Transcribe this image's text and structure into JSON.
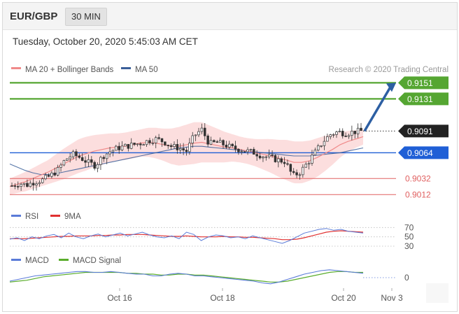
{
  "header": {
    "symbol": "EUR/GBP",
    "timeframe": "30 MIN"
  },
  "datetime": "Tuesday, October 20, 2020 5:45:03 AM CET",
  "credit": "Research © 2020 Trading Central",
  "colors": {
    "resistance": "#55a632",
    "support": "#e06060",
    "pivot": "#1f5fd6",
    "price_tag": "#222222",
    "ma20": "#f08a8a",
    "ma50": "#3a5f99",
    "band": "#fbd3d3",
    "arrow": "#2d5fa3",
    "rsi": "#5a7bd8",
    "rsi_ma": "#e03030",
    "macd": "#5a7bd8",
    "macd_signal": "#5aad2c",
    "candle": "#333333"
  },
  "chart_data": [
    {
      "type": "candlestick",
      "panel": "price",
      "legend": [
        "MA 20 + Bollinger Bands",
        "MA 50"
      ],
      "ylim": [
        0.9,
        0.916
      ],
      "x_ticks": [
        "Oct 16",
        "Oct 18",
        "Oct 20",
        "Nov 3"
      ],
      "levels": [
        {
          "label": "0.9151",
          "value": 0.9151,
          "kind": "resistance"
        },
        {
          "label": "0.9131",
          "value": 0.9131,
          "kind": "resistance"
        },
        {
          "label": "0.9091",
          "value": 0.9091,
          "kind": "price"
        },
        {
          "label": "0.9064",
          "value": 0.9064,
          "kind": "pivot"
        },
        {
          "label": "0.9032",
          "value": 0.9032,
          "kind": "support"
        },
        {
          "label": "0.9012",
          "value": 0.9012,
          "kind": "support"
        }
      ],
      "close_path": [
        0.9023,
        0.9026,
        0.9024,
        0.9028,
        0.903,
        0.9035,
        0.9042,
        0.9055,
        0.9062,
        0.9058,
        0.9052,
        0.9048,
        0.906,
        0.9066,
        0.907,
        0.9072,
        0.9074,
        0.9076,
        0.9079,
        0.9081,
        0.9078,
        0.9072,
        0.907,
        0.9066,
        0.9085,
        0.9093,
        0.9075,
        0.9077,
        0.9074,
        0.907,
        0.9068,
        0.9066,
        0.9064,
        0.906,
        0.9058,
        0.9055,
        0.9053,
        0.9035,
        0.904,
        0.9052,
        0.9065,
        0.9078,
        0.9087,
        0.909,
        0.9088,
        0.909,
        0.9091
      ],
      "ma20": [
        0.9022,
        0.9025,
        0.9028,
        0.9032,
        0.9036,
        0.904,
        0.9045,
        0.905,
        0.9055,
        0.906,
        0.9063,
        0.9066,
        0.9068,
        0.907,
        0.9071,
        0.9072,
        0.9074,
        0.9076,
        0.9077,
        0.9076,
        0.9074,
        0.9072,
        0.9072,
        0.9074,
        0.9076,
        0.9077,
        0.9075,
        0.9073,
        0.9071,
        0.907,
        0.9068,
        0.9066,
        0.9064,
        0.9062,
        0.906,
        0.9057,
        0.9055,
        0.9052,
        0.9052,
        0.9054,
        0.9058,
        0.9063,
        0.9068,
        0.9074,
        0.9078,
        0.9081,
        0.9084
      ],
      "ma50": [
        0.905,
        0.9046,
        0.9042,
        0.9039,
        0.9037,
        0.9037,
        0.9038,
        0.904,
        0.9042,
        0.9044,
        0.9046,
        0.9048,
        0.905,
        0.9052,
        0.9054,
        0.9056,
        0.9058,
        0.906,
        0.9062,
        0.9064,
        0.9066,
        0.9068,
        0.907,
        0.9071,
        0.9072,
        0.9072,
        0.9071,
        0.907,
        0.9069,
        0.9068,
        0.9067,
        0.9066,
        0.9065,
        0.9064,
        0.9063,
        0.9062,
        0.9061,
        0.906,
        0.906,
        0.906,
        0.9061,
        0.9062,
        0.9063,
        0.9064,
        0.9066,
        0.9068,
        0.907
      ],
      "band_width": [
        0.001,
        0.0011,
        0.0012,
        0.0013,
        0.0014,
        0.0015,
        0.0017,
        0.0019,
        0.002,
        0.0021,
        0.0021,
        0.002,
        0.0019,
        0.0018,
        0.0017,
        0.0017,
        0.0017,
        0.0017,
        0.0018,
        0.0019,
        0.002,
        0.0022,
        0.0024,
        0.0025,
        0.0026,
        0.0025,
        0.0023,
        0.0021,
        0.0019,
        0.0017,
        0.0016,
        0.0016,
        0.0017,
        0.0019,
        0.0021,
        0.0023,
        0.0025,
        0.0026,
        0.0026,
        0.0025,
        0.0024,
        0.0022,
        0.0019,
        0.0016,
        0.0013,
        0.0011,
        0.001
      ],
      "forecast": {
        "from": 0.9091,
        "to": 0.9151
      }
    },
    {
      "type": "line",
      "panel": "rsi",
      "legend": [
        "RSI",
        "9MA"
      ],
      "y_ticks": [
        70,
        50,
        30
      ],
      "ylim": [
        30,
        75
      ],
      "rsi": [
        45,
        48,
        42,
        50,
        46,
        52,
        55,
        48,
        58,
        50,
        46,
        52,
        56,
        50,
        54,
        58,
        52,
        56,
        60,
        54,
        50,
        48,
        52,
        46,
        60,
        55,
        42,
        50,
        54,
        52,
        48,
        50,
        46,
        52,
        48,
        44,
        40,
        36,
        42,
        50,
        58,
        62,
        66,
        68,
        64,
        66,
        62,
        60,
        58
      ],
      "ma9": [
        46,
        46,
        46,
        47,
        48,
        49,
        50,
        51,
        51,
        52,
        52,
        52,
        53,
        53,
        54,
        54,
        55,
        55,
        55,
        54,
        53,
        52,
        51,
        51,
        52,
        51,
        50,
        50,
        50,
        51,
        50,
        50,
        49,
        49,
        48,
        47,
        46,
        44,
        44,
        45,
        48,
        52,
        56,
        60,
        62,
        63,
        62,
        61,
        60
      ]
    },
    {
      "type": "line",
      "panel": "macd",
      "legend": [
        "MACD",
        "MACD Signal"
      ],
      "y_ticks": [
        0
      ],
      "ylim": [
        -0.0012,
        0.0012
      ],
      "macd": [
        -0.0004,
        -0.0002,
        0.0,
        0.0002,
        0.0003,
        0.0004,
        0.0005,
        0.0006,
        0.0007,
        0.0007,
        0.0006,
        0.0006,
        0.0007,
        0.0006,
        0.0005,
        0.0004,
        0.0004,
        0.0002,
        0.0002,
        0.0004,
        0.0005,
        0.0004,
        0.0002,
        0.0002,
        0.0001,
        0.0,
        -0.0001,
        -0.0002,
        -0.0003,
        -0.0004,
        -0.0006,
        -0.0007,
        -0.0005,
        -0.0002,
        0.0001,
        0.0004,
        0.0006,
        0.0008,
        0.0009,
        0.0008,
        0.0007,
        0.0006,
        0.0005
      ],
      "signal": [
        -0.0005,
        -0.0004,
        -0.0003,
        -0.0001,
        0.0001,
        0.0002,
        0.0003,
        0.0004,
        0.0005,
        0.0006,
        0.0006,
        0.0006,
        0.0006,
        0.0006,
        0.0005,
        0.0005,
        0.0004,
        0.0004,
        0.0003,
        0.0003,
        0.0004,
        0.0004,
        0.0003,
        0.0003,
        0.0002,
        0.0001,
        0.0,
        -0.0001,
        -0.0002,
        -0.0003,
        -0.0004,
        -0.0005,
        -0.0005,
        -0.0004,
        -0.0002,
        0.0,
        0.0002,
        0.0004,
        0.0006,
        0.0007,
        0.0007,
        0.0006,
        0.0006
      ]
    }
  ]
}
